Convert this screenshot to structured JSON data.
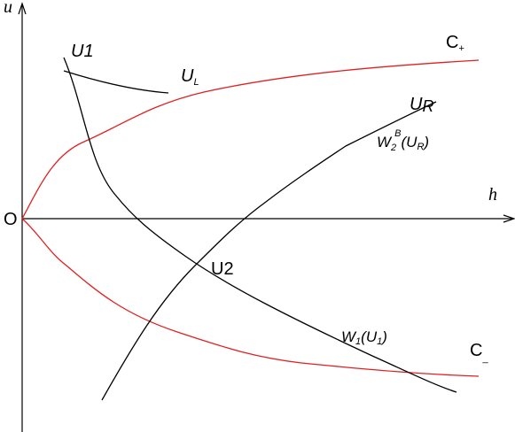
{
  "axes": {
    "vertical": "u",
    "horizontal": "h",
    "origin": "O"
  },
  "labels": {
    "u1": {
      "main": "U",
      "sub": "1"
    },
    "ul": {
      "main": "U",
      "sub": "L"
    },
    "c_plus": {
      "main": "C",
      "sub": "+"
    },
    "ur": {
      "main": "U",
      "sub": "R"
    },
    "w2": {
      "main": "W",
      "sub": "2",
      "sup": "B",
      "open": "(U",
      "arg_sub": "R",
      "close": ")"
    },
    "u2": {
      "main": "U2"
    },
    "w1": {
      "main": "W",
      "sub": "1",
      "open": "(U",
      "arg_sub": "1",
      "close": ")"
    },
    "c_minus": {
      "main": "C",
      "sub": "_"
    }
  }
}
